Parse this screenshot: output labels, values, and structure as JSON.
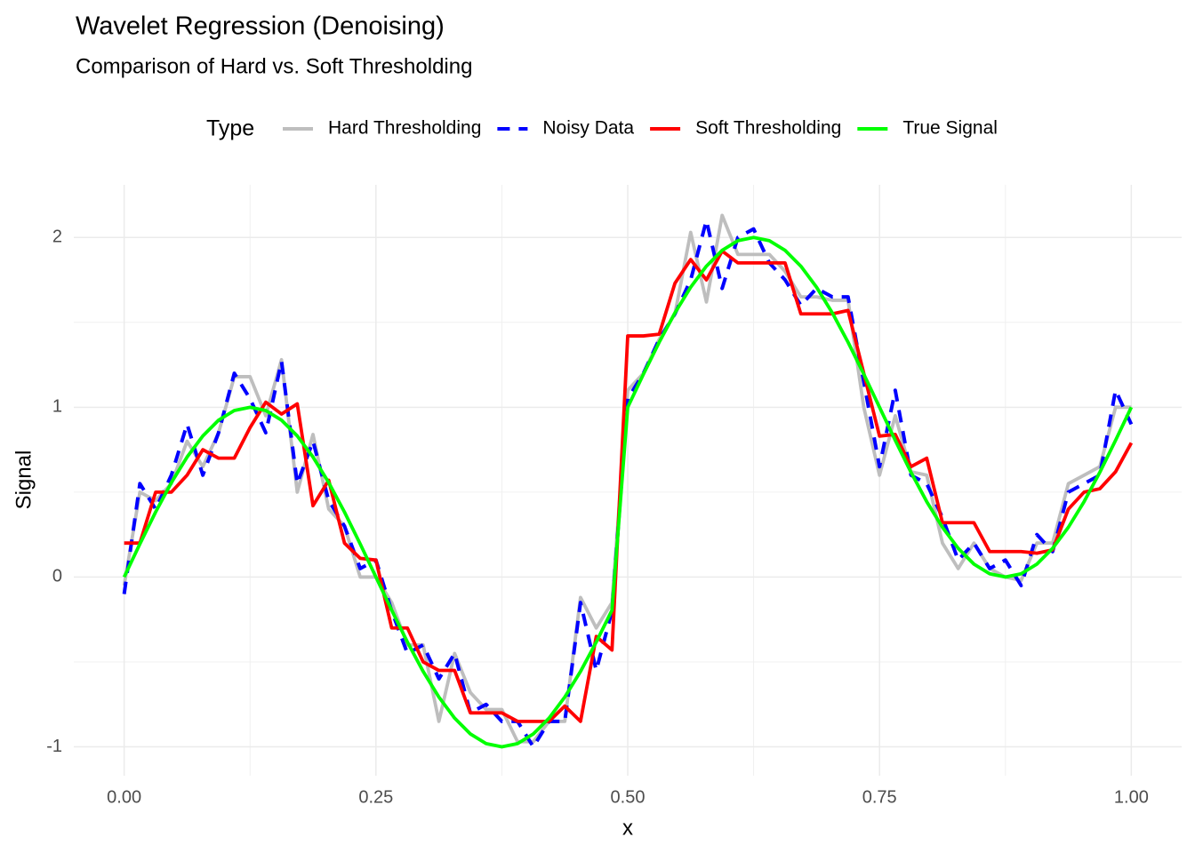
{
  "chart_data": {
    "type": "line",
    "title": "Wavelet Regression (Denoising)",
    "subtitle": "Comparison of Hard vs. Soft Thresholding",
    "xlabel": "x",
    "ylabel": "Signal",
    "legend_title": "Type",
    "legend_position": "top",
    "grid": true,
    "xlim": [
      -0.05,
      1.05
    ],
    "ylim": [
      -1.17,
      2.31
    ],
    "xticks": [
      {
        "value": 0,
        "label": "0.00"
      },
      {
        "value": 0.25,
        "label": "0.25"
      },
      {
        "value": 0.5,
        "label": "0.50"
      },
      {
        "value": 0.75,
        "label": "0.75"
      },
      {
        "value": 1,
        "label": "1.00"
      }
    ],
    "yticks": [
      -1,
      0,
      1,
      2
    ],
    "x": [
      0,
      0.015625,
      0.03125,
      0.046875,
      0.0625,
      0.078125,
      0.09375,
      0.109375,
      0.125,
      0.140625,
      0.15625,
      0.171875,
      0.1875,
      0.203125,
      0.21875,
      0.234375,
      0.25,
      0.265625,
      0.28125,
      0.296875,
      0.3125,
      0.328125,
      0.34375,
      0.359375,
      0.375,
      0.390625,
      0.40625,
      0.421875,
      0.4375,
      0.453125,
      0.46875,
      0.484375,
      0.5,
      0.515625,
      0.53125,
      0.546875,
      0.5625,
      0.578125,
      0.59375,
      0.609375,
      0.625,
      0.640625,
      0.65625,
      0.671875,
      0.6875,
      0.703125,
      0.71875,
      0.734375,
      0.75,
      0.765625,
      0.78125,
      0.796875,
      0.8125,
      0.828125,
      0.84375,
      0.859375,
      0.875,
      0.890625,
      0.90625,
      0.921875,
      0.9375,
      0.953125,
      0.96875,
      0.984375,
      1
    ],
    "series": [
      {
        "name": "Hard Thresholding",
        "color": "#bebebe",
        "dash": false,
        "values": [
          -0.05,
          0.5,
          0.45,
          0.55,
          0.8,
          0.65,
          0.85,
          1.18,
          1.18,
          0.95,
          1.28,
          0.5,
          0.84,
          0.4,
          0.3,
          0.0,
          0.0,
          -0.15,
          -0.4,
          -0.4,
          -0.85,
          -0.45,
          -0.68,
          -0.78,
          -0.78,
          -0.97,
          -0.97,
          -0.85,
          -0.85,
          -0.12,
          -0.3,
          -0.15,
          1.1,
          1.2,
          1.4,
          1.55,
          2.03,
          1.62,
          2.13,
          1.9,
          1.9,
          1.9,
          1.8,
          1.65,
          1.65,
          1.63,
          1.63,
          1.0,
          0.6,
          0.95,
          0.62,
          0.6,
          0.2,
          0.05,
          0.2,
          0.05,
          0.0,
          -0.02,
          0.2,
          0.2,
          0.55,
          0.6,
          0.65,
          1.0,
          1.0
        ]
      },
      {
        "name": "Noisy Data",
        "color": "#0000ff",
        "dash": true,
        "values": [
          -0.1,
          0.55,
          0.4,
          0.6,
          0.9,
          0.6,
          0.85,
          1.2,
          1.05,
          0.85,
          1.27,
          0.55,
          0.8,
          0.45,
          0.3,
          0.05,
          0.1,
          -0.2,
          -0.45,
          -0.4,
          -0.6,
          -0.45,
          -0.8,
          -0.75,
          -0.85,
          -0.85,
          -1.0,
          -0.85,
          -0.85,
          -0.15,
          -0.55,
          -0.2,
          1.05,
          1.2,
          1.4,
          1.55,
          1.75,
          2.1,
          1.7,
          2.0,
          2.05,
          1.85,
          1.75,
          1.6,
          1.7,
          1.65,
          1.65,
          1.15,
          0.65,
          1.1,
          0.6,
          0.55,
          0.35,
          0.1,
          0.2,
          0.05,
          0.1,
          -0.05,
          0.25,
          0.15,
          0.5,
          0.55,
          0.6,
          1.1,
          0.9
        ]
      },
      {
        "name": "Soft Thresholding",
        "color": "#ff0000",
        "dash": false,
        "values": [
          0.2,
          0.2,
          0.5,
          0.5,
          0.6,
          0.75,
          0.7,
          0.7,
          0.88,
          1.03,
          0.96,
          1.02,
          0.42,
          0.57,
          0.2,
          0.11,
          0.1,
          -0.3,
          -0.3,
          -0.5,
          -0.55,
          -0.55,
          -0.8,
          -0.8,
          -0.8,
          -0.85,
          -0.85,
          -0.85,
          -0.76,
          -0.85,
          -0.35,
          -0.43,
          1.42,
          1.42,
          1.43,
          1.73,
          1.87,
          1.75,
          1.92,
          1.85,
          1.85,
          1.85,
          1.85,
          1.55,
          1.55,
          1.55,
          1.57,
          1.2,
          0.83,
          0.84,
          0.65,
          0.7,
          0.32,
          0.32,
          0.32,
          0.15,
          0.15,
          0.15,
          0.14,
          0.16,
          0.4,
          0.5,
          0.52,
          0.62,
          0.79
        ]
      },
      {
        "name": "True Signal",
        "color": "#00ff00",
        "dash": false,
        "values": [
          0,
          0.195,
          0.383,
          0.556,
          0.707,
          0.831,
          0.924,
          0.981,
          1,
          0.981,
          0.924,
          0.831,
          0.707,
          0.556,
          0.383,
          0.195,
          0,
          -0.195,
          -0.383,
          -0.556,
          -0.707,
          -0.831,
          -0.924,
          -0.981,
          -1,
          -0.981,
          -0.924,
          -0.831,
          -0.707,
          -0.556,
          -0.383,
          -0.195,
          1,
          1.195,
          1.383,
          1.556,
          1.707,
          1.831,
          1.924,
          1.981,
          2,
          1.981,
          1.924,
          1.831,
          1.707,
          1.556,
          1.383,
          1.195,
          1,
          0.805,
          0.617,
          0.444,
          0.293,
          0.169,
          0.076,
          0.019,
          0,
          0.019,
          0.076,
          0.169,
          0.293,
          0.444,
          0.617,
          0.805,
          1
        ]
      }
    ]
  }
}
